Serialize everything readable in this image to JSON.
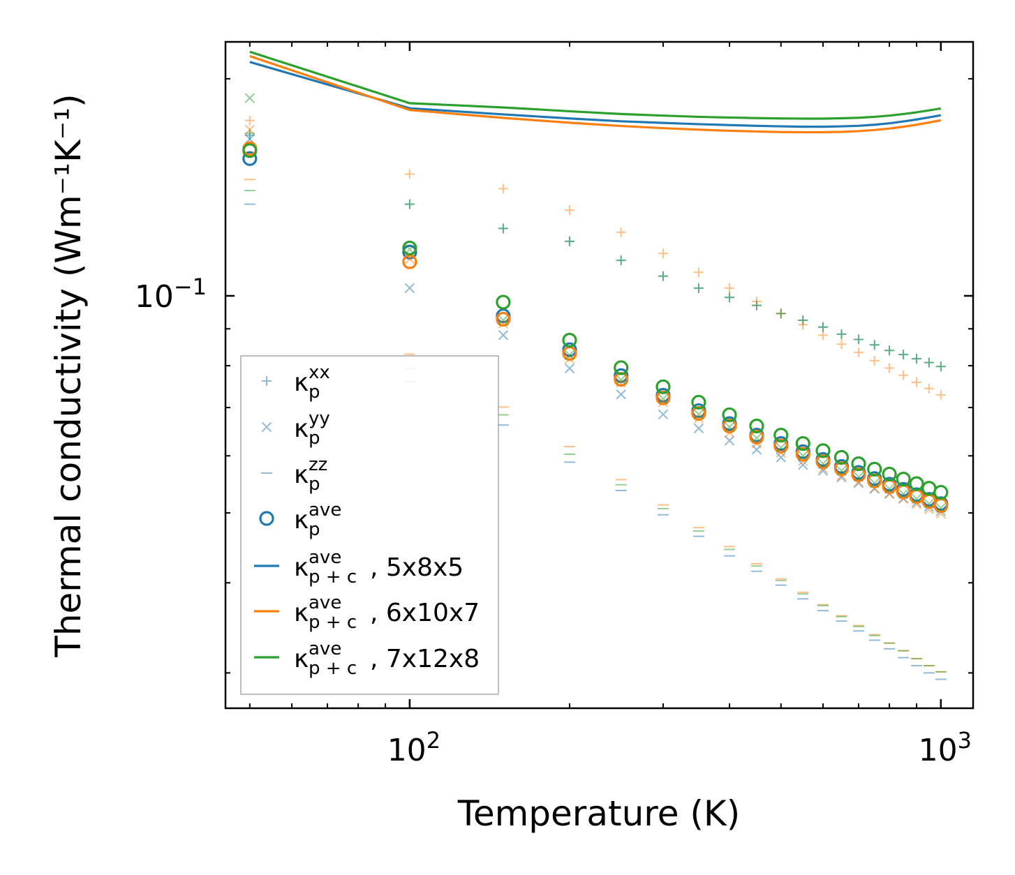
{
  "chart_data": {
    "type": "scatter",
    "xscale": "log",
    "yscale": "log",
    "xlim": [
      45,
      1150
    ],
    "ylim": [
      0.0268,
      0.225
    ],
    "xlabel": "Temperature (K)",
    "ylabel": "Thermal conductivity (Wm⁻¹K⁻¹)",
    "xtick_labels": [
      {
        "value": 100,
        "base": "10",
        "exp": "2"
      },
      {
        "value": 1000,
        "base": "10",
        "exp": "3"
      }
    ],
    "ytick_labels": [
      {
        "value": 0.1,
        "base": "10",
        "exp": "−1"
      }
    ],
    "x": [
      50,
      100,
      150,
      200,
      250,
      300,
      350,
      400,
      450,
      500,
      550,
      600,
      650,
      700,
      750,
      800,
      850,
      900,
      950,
      1000
    ],
    "colors": {
      "blue": "#1f77b4",
      "orange": "#ff7f0e",
      "green": "#2ca02c"
    },
    "groups": [
      {
        "name": "5x8x5",
        "color": "#1f77b4",
        "xx": [
          0.167,
          0.134,
          0.124,
          0.119,
          0.112,
          0.1065,
          0.1025,
          0.0995,
          0.097,
          0.0945,
          0.0925,
          0.0905,
          0.0885,
          0.087,
          0.0855,
          0.084,
          0.0829,
          0.0818,
          0.0808,
          0.0798
        ],
        "yy": [
          0.165,
          0.1025,
          0.0882,
          0.0793,
          0.073,
          0.0685,
          0.0655,
          0.063,
          0.0612,
          0.0597,
          0.0583,
          0.0572,
          0.056,
          0.055,
          0.054,
          0.0532,
          0.0524,
          0.0517,
          0.051,
          0.0503
        ],
        "zz": [
          0.134,
          0.076,
          0.0662,
          0.0588,
          0.0537,
          0.0497,
          0.0464,
          0.0436,
          0.0415,
          0.0397,
          0.038,
          0.0366,
          0.0354,
          0.0343,
          0.0333,
          0.0324,
          0.0315,
          0.0307,
          0.03,
          0.0294
        ],
        "ave": [
          0.155,
          0.115,
          0.0938,
          0.0842,
          0.0775,
          0.0728,
          0.0693,
          0.0665,
          0.0641,
          0.0624,
          0.0608,
          0.0593,
          0.058,
          0.0569,
          0.0558,
          0.0548,
          0.0539,
          0.053,
          0.0522,
          0.0515
        ],
        "line": [
          0.211,
          0.182,
          0.1785,
          0.1762,
          0.1746,
          0.1737,
          0.173,
          0.1725,
          0.1721,
          0.1718,
          0.1716,
          0.1716,
          0.1718,
          0.1721,
          0.1727,
          0.1735,
          0.1745,
          0.1756,
          0.1768,
          0.178
        ]
      },
      {
        "name": "6x10x7",
        "color": "#ff7f0e",
        "xx": [
          0.175,
          0.1475,
          0.1408,
          0.1315,
          0.1225,
          0.1145,
          0.1078,
          0.1025,
          0.0982,
          0.0945,
          0.0912,
          0.0882,
          0.0857,
          0.0835,
          0.0813,
          0.0794,
          0.0776,
          0.0759,
          0.0744,
          0.0729
        ],
        "yy": [
          0.17,
          0.1125,
          0.0915,
          0.0818,
          0.0758,
          0.0712,
          0.0676,
          0.0646,
          0.0624,
          0.0606,
          0.059,
          0.0576,
          0.0563,
          0.0552,
          0.0541,
          0.0531,
          0.0523,
          0.0514,
          0.0506,
          0.0499
        ],
        "zz": [
          0.145,
          0.083,
          0.0701,
          0.0618,
          0.0556,
          0.0513,
          0.0477,
          0.0449,
          0.0425,
          0.0405,
          0.0388,
          0.0373,
          0.036,
          0.0349,
          0.0339,
          0.033,
          0.0322,
          0.0314,
          0.0307,
          0.0301
        ],
        "ave": [
          0.16,
          0.1115,
          0.0928,
          0.0832,
          0.0766,
          0.0722,
          0.0687,
          0.066,
          0.0637,
          0.0619,
          0.0603,
          0.0589,
          0.0576,
          0.0565,
          0.0554,
          0.0544,
          0.0535,
          0.0527,
          0.0519,
          0.0512
        ],
        "line": [
          0.215,
          0.181,
          0.1765,
          0.1738,
          0.172,
          0.1708,
          0.17,
          0.1694,
          0.169,
          0.1687,
          0.1686,
          0.1686,
          0.1688,
          0.1692,
          0.1698,
          0.1706,
          0.1716,
          0.1727,
          0.1739,
          0.1752
        ]
      },
      {
        "name": "7x12x8",
        "color": "#2ca02c",
        "xx": [
          0.168,
          0.134,
          0.124,
          0.119,
          0.112,
          0.1065,
          0.1025,
          0.0995,
          0.097,
          0.0945,
          0.0925,
          0.0905,
          0.0885,
          0.087,
          0.0855,
          0.084,
          0.0829,
          0.0818,
          0.0808,
          0.0798
        ],
        "yy": [
          0.188,
          0.116,
          0.0925,
          0.0828,
          0.0765,
          0.072,
          0.0685,
          0.0658,
          0.0635,
          0.0616,
          0.06,
          0.0585,
          0.0572,
          0.0561,
          0.055,
          0.054,
          0.0531,
          0.0523,
          0.0515,
          0.0508
        ],
        "zz": [
          0.14,
          0.0792,
          0.0684,
          0.0603,
          0.0547,
          0.0507,
          0.0472,
          0.0445,
          0.0422,
          0.0403,
          0.0386,
          0.0372,
          0.0359,
          0.0348,
          0.0338,
          0.033,
          0.0322,
          0.0314,
          0.0307,
          0.0301
        ],
        "ave": [
          0.159,
          0.1165,
          0.098,
          0.0868,
          0.0795,
          0.0748,
          0.0712,
          0.0684,
          0.066,
          0.0641,
          0.0624,
          0.061,
          0.0597,
          0.0585,
          0.0575,
          0.0566,
          0.0557,
          0.0549,
          0.0541,
          0.0534
        ],
        "line": [
          0.218,
          0.185,
          0.1825,
          0.1803,
          0.1787,
          0.1778,
          0.1771,
          0.1767,
          0.1764,
          0.1762,
          0.1761,
          0.1761,
          0.1763,
          0.1766,
          0.1771,
          0.1778,
          0.1787,
          0.1797,
          0.1808,
          0.1819
        ]
      }
    ],
    "legend": {
      "position": "lower-left",
      "entries": [
        {
          "marker": "plus",
          "color": "#1f77b4",
          "alpha": 0.5,
          "base": "κ",
          "sub": "p",
          "sup": "xx",
          "suffix": ""
        },
        {
          "marker": "cross",
          "color": "#1f77b4",
          "alpha": 0.5,
          "base": "κ",
          "sub": "p",
          "sup": "yy",
          "suffix": ""
        },
        {
          "marker": "hline",
          "color": "#1f77b4",
          "alpha": 0.5,
          "base": "κ",
          "sub": "p",
          "sup": "zz",
          "suffix": ""
        },
        {
          "marker": "circle",
          "color": "#1f77b4",
          "alpha": 1.0,
          "base": "κ",
          "sub": "p",
          "sup": "ave",
          "suffix": ""
        },
        {
          "marker": "line",
          "color": "#1f77b4",
          "alpha": 1.0,
          "base": "κ",
          "sub": "p + c",
          "sup": "ave",
          "suffix": ", 5x8x5"
        },
        {
          "marker": "line",
          "color": "#ff7f0e",
          "alpha": 1.0,
          "base": "κ",
          "sub": "p + c",
          "sup": "ave",
          "suffix": ", 6x10x7"
        },
        {
          "marker": "line",
          "color": "#2ca02c",
          "alpha": 1.0,
          "base": "κ",
          "sub": "p + c",
          "sup": "ave",
          "suffix": ", 7x12x8"
        }
      ]
    }
  }
}
